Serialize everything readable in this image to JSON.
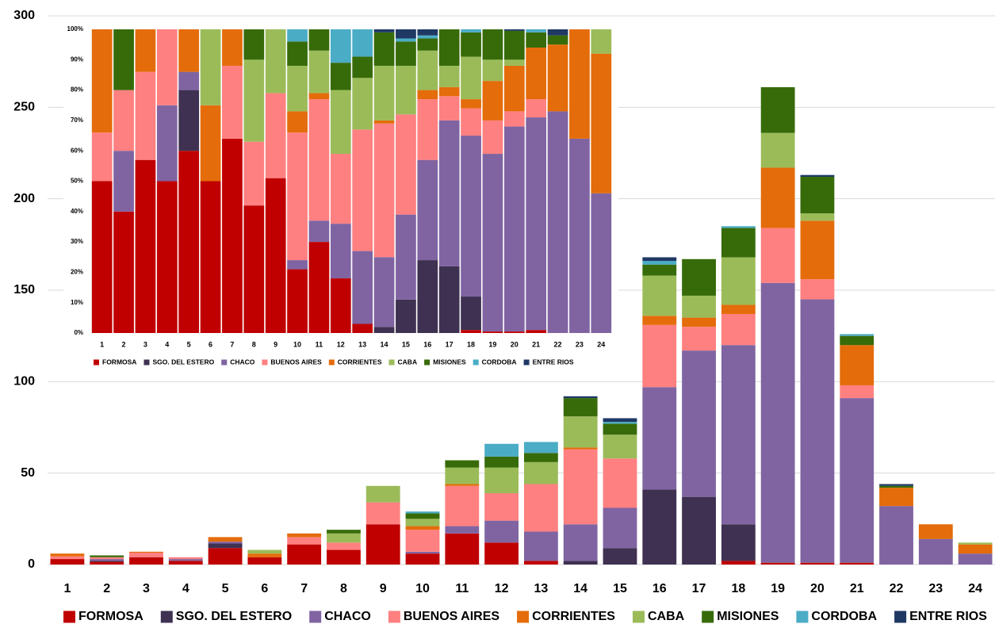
{
  "chart_data": [
    {
      "type": "bar",
      "stacked": true,
      "grid": true,
      "legend": "bottom",
      "categories": [
        "1",
        "2",
        "3",
        "4",
        "5",
        "6",
        "7",
        "8",
        "9",
        "10",
        "11",
        "12",
        "13",
        "14",
        "15",
        "16",
        "17",
        "18",
        "19",
        "20",
        "21",
        "22",
        "23",
        "24"
      ],
      "ylim": [
        0,
        300
      ],
      "yticks": [
        0,
        50,
        100,
        150,
        200,
        250,
        300
      ],
      "series": [
        {
          "name": "FORMOSA",
          "color": "#c00000",
          "values": [
            3,
            1.5,
            4,
            2,
            9,
            4,
            11,
            8,
            22,
            6,
            17,
            12,
            2,
            0,
            0,
            0,
            0,
            2,
            1,
            1,
            1,
            0,
            0,
            0
          ]
        },
        {
          "name": "SGO. DEL ESTERO",
          "color": "#3f3151",
          "values": [
            0,
            0.5,
            0,
            0,
            2.5,
            0,
            0,
            0,
            0,
            0,
            0,
            0,
            0,
            2,
            9,
            41,
            37,
            20,
            0,
            0,
            0,
            0,
            0,
            0
          ]
        },
        {
          "name": "CHACO",
          "color": "#8064a2",
          "values": [
            0,
            1,
            0,
            1,
            1,
            0,
            0,
            0,
            0,
            1,
            4,
            12,
            16,
            20,
            22,
            56,
            80,
            98,
            153,
            144,
            90,
            32,
            14,
            6
          ]
        },
        {
          "name": "BUENOS AIRES",
          "color": "#ff8080",
          "values": [
            1.5,
            1,
            2.5,
            1,
            0,
            0,
            4,
            4,
            12,
            12,
            22,
            15,
            26,
            41,
            27,
            34,
            13,
            17,
            30,
            11,
            7,
            0,
            0,
            0
          ]
        },
        {
          "name": "CORRIENTES",
          "color": "#e46c0a",
          "values": [
            1.5,
            0,
            0.5,
            0,
            2.5,
            2,
            2,
            0,
            0,
            2,
            1,
            0,
            0,
            1,
            0,
            5,
            5,
            5,
            33,
            32,
            22,
            10,
            8,
            5
          ]
        },
        {
          "name": "CABA",
          "color": "#9bbb59",
          "values": [
            0,
            0,
            0,
            0,
            0,
            2,
            0,
            5,
            9,
            4,
            9,
            14,
            12,
            17,
            13,
            22,
            12,
            26,
            19,
            4,
            0,
            0,
            0,
            1
          ]
        },
        {
          "name": "MISIONES",
          "color": "#376b09",
          "values": [
            0,
            1,
            0,
            0,
            0,
            0,
            0,
            2,
            0,
            3,
            4,
            6,
            5,
            10,
            6,
            6,
            20,
            16,
            25,
            20,
            5,
            1,
            0,
            0
          ]
        },
        {
          "name": "CORDOBA",
          "color": "#4bacc6",
          "values": [
            0,
            0,
            0,
            0,
            0,
            0,
            0,
            0,
            0,
            1,
            0,
            7,
            6,
            0,
            1,
            2,
            0,
            1,
            0,
            0,
            1,
            0,
            0,
            0
          ]
        },
        {
          "name": "ENTRE RIOS",
          "color": "#1f3864",
          "values": [
            0,
            0,
            0,
            0,
            0,
            0,
            0,
            0,
            0,
            0,
            0,
            0,
            0,
            1,
            2,
            2,
            0,
            0,
            0,
            1,
            0,
            1,
            0,
            0
          ]
        }
      ]
    },
    {
      "type": "bar",
      "stacked": true,
      "grid": false,
      "legend": "bottom",
      "categories": [
        "1",
        "2",
        "3",
        "4",
        "5",
        "6",
        "7",
        "8",
        "9",
        "10",
        "11",
        "12",
        "13",
        "14",
        "15",
        "16",
        "17",
        "18",
        "19",
        "20",
        "21",
        "22",
        "23",
        "24"
      ],
      "ylim": [
        0,
        100
      ],
      "yticks": [
        {
          "value": 0,
          "label": "0%"
        },
        {
          "value": 10,
          "label": "10%"
        },
        {
          "value": 20,
          "label": "20%"
        },
        {
          "value": 30,
          "label": "30%"
        },
        {
          "value": 40,
          "label": "40%"
        },
        {
          "value": 50,
          "label": "50%"
        },
        {
          "value": 60,
          "label": "60%"
        },
        {
          "value": 70,
          "label": "70%"
        },
        {
          "value": 80,
          "label": "80%"
        },
        {
          "value": 90,
          "label": "90%"
        },
        {
          "value": 100,
          "label": "100%"
        }
      ],
      "series": [
        {
          "name": "FORMOSA",
          "color": "#c00000",
          "values": [
            50,
            40,
            57,
            50,
            60,
            50,
            64,
            42,
            51,
            21,
            30,
            18,
            3,
            0,
            0,
            0,
            0,
            1,
            0.5,
            0.5,
            1,
            0,
            0,
            0
          ]
        },
        {
          "name": "SGO. DEL ESTERO",
          "color": "#3f3151",
          "values": [
            0,
            0,
            0,
            0,
            20,
            0,
            0,
            0,
            0,
            0,
            0,
            0,
            0,
            2,
            11,
            24,
            22,
            11,
            0,
            0,
            0,
            0,
            0,
            0
          ]
        },
        {
          "name": "CHACO",
          "color": "#8064a2",
          "values": [
            0,
            20,
            0,
            25,
            6,
            0,
            0,
            0,
            0,
            3,
            7,
            18,
            24,
            23,
            28,
            33,
            48,
            53,
            58.5,
            67.5,
            70,
            73,
            64,
            46
          ]
        },
        {
          "name": "BUENOS AIRES",
          "color": "#ff8080",
          "values": [
            16,
            20,
            29,
            25,
            0,
            0,
            24,
            21,
            28,
            42,
            40,
            23,
            40,
            44,
            33,
            20,
            8,
            9,
            11,
            5,
            6,
            0,
            0,
            0
          ]
        },
        {
          "name": "CORRIENTES",
          "color": "#e46c0a",
          "values": [
            34,
            0,
            14,
            0,
            14,
            25,
            12,
            0,
            0,
            7,
            2,
            0,
            0,
            1,
            0,
            3,
            3,
            3,
            13,
            15,
            17,
            22,
            36,
            46
          ]
        },
        {
          "name": "CABA",
          "color": "#9bbb59",
          "values": [
            0,
            0,
            0,
            0,
            0,
            25,
            0,
            27,
            21,
            15,
            14,
            21,
            17,
            18,
            16,
            13,
            7,
            14,
            7,
            2,
            0,
            0,
            0,
            8
          ]
        },
        {
          "name": "MISIONES",
          "color": "#376b09",
          "values": [
            0,
            20,
            0,
            0,
            0,
            0,
            0,
            10,
            0,
            8,
            7,
            9,
            7,
            11,
            8,
            4,
            12,
            8,
            10,
            9.5,
            5,
            3,
            0,
            0
          ]
        },
        {
          "name": "CORDOBA",
          "color": "#4bacc6",
          "values": [
            0,
            0,
            0,
            0,
            0,
            0,
            0,
            0,
            0,
            4,
            0,
            11,
            9,
            0,
            1,
            1,
            0,
            1,
            0,
            0,
            1,
            0,
            0,
            0
          ]
        },
        {
          "name": "ENTRE RIOS",
          "color": "#1f3864",
          "values": [
            0,
            0,
            0,
            0,
            0,
            0,
            0,
            0,
            0,
            0,
            0,
            0,
            0,
            1,
            3,
            2,
            0,
            0,
            0,
            0.5,
            0,
            2,
            0,
            0
          ]
        }
      ]
    }
  ]
}
